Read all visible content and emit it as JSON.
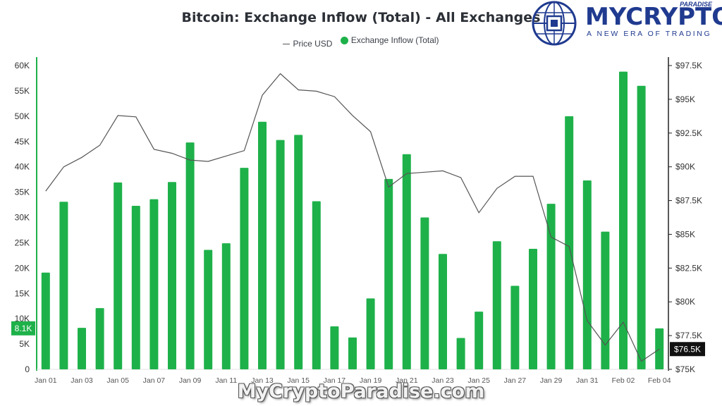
{
  "header": {
    "title": "Bitcoin: Exchange Inflow (Total) - All Exchanges",
    "legend": {
      "price_label": "Price USD",
      "inflow_label": "Exchange Inflow (Total)"
    }
  },
  "logo": {
    "brand": "MYCRYPTO",
    "sub_brand": "PARADISE",
    "tagline": "A NEW ERA OF TRADING",
    "color": "#1f3a8f"
  },
  "watermark": "MyCryptoParadise.com",
  "colors": {
    "bar": "#1eb14a",
    "price_line": "#555555",
    "badge_left": "#1eb14a",
    "badge_right": "#111111",
    "axis_left": "#1eb14a"
  },
  "chart_data": {
    "type": "bar",
    "title": "Bitcoin: Exchange Inflow (Total) - All Exchanges",
    "categories": [
      "Jan 01",
      "Jan 02",
      "Jan 03",
      "Jan 04",
      "Jan 05",
      "Jan 06",
      "Jan 07",
      "Jan 08",
      "Jan 09",
      "Jan 10",
      "Jan 11",
      "Jan 12",
      "Jan 13",
      "Jan 14",
      "Jan 15",
      "Jan 16",
      "Jan 17",
      "Jan 18",
      "Jan 19",
      "Jan 20",
      "Jan 21",
      "Jan 22",
      "Jan 23",
      "Jan 24",
      "Jan 25",
      "Jan 26",
      "Jan 27",
      "Jan 28",
      "Jan 29",
      "Jan 30",
      "Jan 31",
      "Feb 01",
      "Feb 02",
      "Feb 03",
      "Feb 04"
    ],
    "x_tick_labels": [
      "Jan 01",
      "Jan 03",
      "Jan 05",
      "Jan 07",
      "Jan 09",
      "Jan 11",
      "Jan 13",
      "Jan 15",
      "Jan 17",
      "Jan 19",
      "Jan 21",
      "Jan 23",
      "Jan 25",
      "Jan 27",
      "Jan 29",
      "Jan 31",
      "Feb 02",
      "Feb 04"
    ],
    "series": [
      {
        "name": "Exchange Inflow (Total)",
        "type": "bar",
        "axis": "left",
        "values": [
          19100,
          33100,
          8200,
          12100,
          36900,
          32300,
          33600,
          37000,
          44800,
          23600,
          24900,
          39800,
          48900,
          45300,
          46300,
          33200,
          8500,
          6300,
          14000,
          37600,
          42500,
          30000,
          22800,
          6200,
          11400,
          25300,
          16500,
          23800,
          32700,
          50000,
          37300,
          27200,
          58800,
          56000,
          8100
        ]
      },
      {
        "name": "Price USD",
        "type": "line",
        "axis": "right",
        "values": [
          88200,
          90000,
          90700,
          91600,
          93800,
          93700,
          91300,
          91000,
          90500,
          90400,
          90800,
          91200,
          95300,
          96900,
          95700,
          95600,
          95200,
          93800,
          92600,
          88500,
          89500,
          89600,
          89700,
          89200,
          86600,
          88400,
          89300,
          89300,
          84800,
          84100,
          78600,
          76800,
          78500,
          75600,
          76500
        ]
      }
    ],
    "left_axis": {
      "ylim": [
        0,
        60000
      ],
      "tick_labels": [
        "0",
        "5K",
        "10K",
        "15K",
        "20K",
        "25K",
        "30K",
        "35K",
        "40K",
        "45K",
        "50K",
        "55K",
        "60K"
      ]
    },
    "right_axis": {
      "ylim": [
        75000,
        97500
      ],
      "tick_labels": [
        "$75K",
        "$77.5K",
        "$80K",
        "$82.5K",
        "$85K",
        "$87.5K",
        "$90K",
        "$92.5K",
        "$95K",
        "$97.5K"
      ]
    },
    "current_inflow_label": "8.1K",
    "current_price_label": "$76.5K",
    "legend_position": "top-center",
    "grid": false
  }
}
